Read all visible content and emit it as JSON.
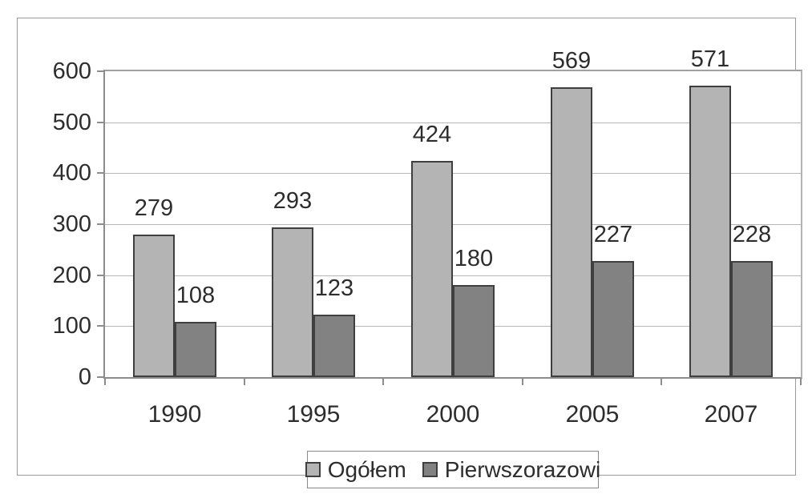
{
  "chart_data": {
    "type": "bar",
    "title": "",
    "xlabel": "",
    "ylabel": "",
    "categories": [
      "1990",
      "1995",
      "2000",
      "2005",
      "2007"
    ],
    "series": [
      {
        "name": "Ogółem",
        "color": "#b4b4b4",
        "values": [
          279,
          293,
          424,
          569,
          571
        ]
      },
      {
        "name": "Pierwszorazowi",
        "color": "#828282",
        "values": [
          108,
          123,
          180,
          227,
          228
        ]
      }
    ],
    "ylim": [
      0,
      600
    ],
    "ytick_step": 100,
    "yticks": [
      0,
      100,
      200,
      300,
      400,
      500,
      600
    ],
    "grid": true,
    "value_labels": true,
    "legend_position": "bottom-center",
    "bar_border_color": "#3f3f3f",
    "text_color": "#2d2d2d",
    "gridline_color": "#b6b6b6",
    "axis_color": "#8c8c8c",
    "frame_color": "#9a9a9a",
    "background_color": "#ffffff"
  }
}
